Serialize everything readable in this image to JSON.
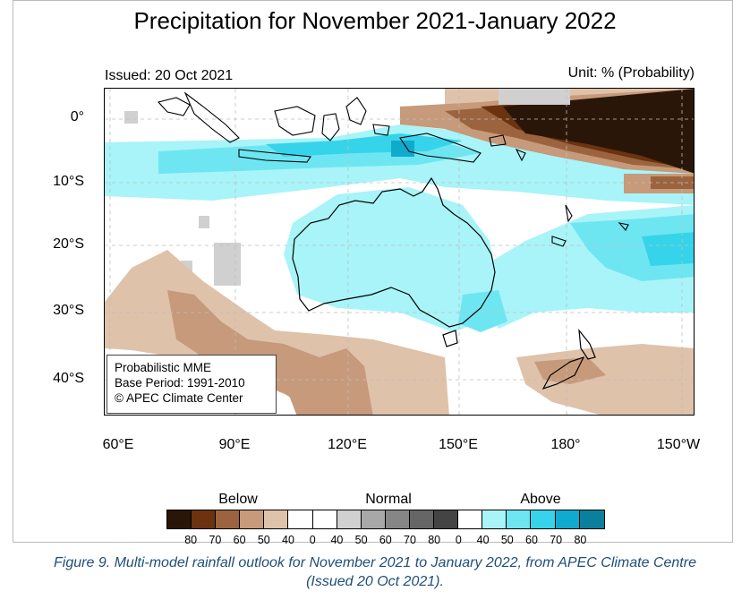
{
  "title": "Precipitation for November 2021-January 2022",
  "issued": "Issued: 20 Oct 2021",
  "unit": "Unit: % (Probability)",
  "lat_labels": [
    "0°",
    "10°S",
    "20°S",
    "30°S",
    "40°S"
  ],
  "lon_labels": [
    "60°E",
    "90°E",
    "120°E",
    "150°E",
    "180°",
    "150°W"
  ],
  "info": {
    "line1": "Probabilistic MME",
    "line2": "Base Period: 1991-2010",
    "line3": "© APEC Climate Center"
  },
  "legend": {
    "below": "Below",
    "normal": "Normal",
    "above": "Above",
    "labels": [
      "80",
      "70",
      "60",
      "50",
      "40",
      "0",
      "40",
      "50",
      "60",
      "70",
      "80",
      "0",
      "40",
      "50",
      "60",
      "70",
      "80"
    ],
    "colors": [
      "#2a1608",
      "#6b3310",
      "#9c643e",
      "#c69a7a",
      "#dfc2aa",
      "#ffffff",
      "#ffffff",
      "#d0d0d0",
      "#a8a8a8",
      "#868686",
      "#666666",
      "#444444",
      "#ffffff",
      "#a8f4f8",
      "#6ee6f2",
      "#36d4ea",
      "#10aacd",
      "#0a7f9e"
    ]
  },
  "caption": {
    "line1": "Figure 9. Multi-model rainfall outlook for November 2021 to January 2022, from APEC Climate Centre",
    "line2": "(Issued 20 Oct 2021)."
  }
}
